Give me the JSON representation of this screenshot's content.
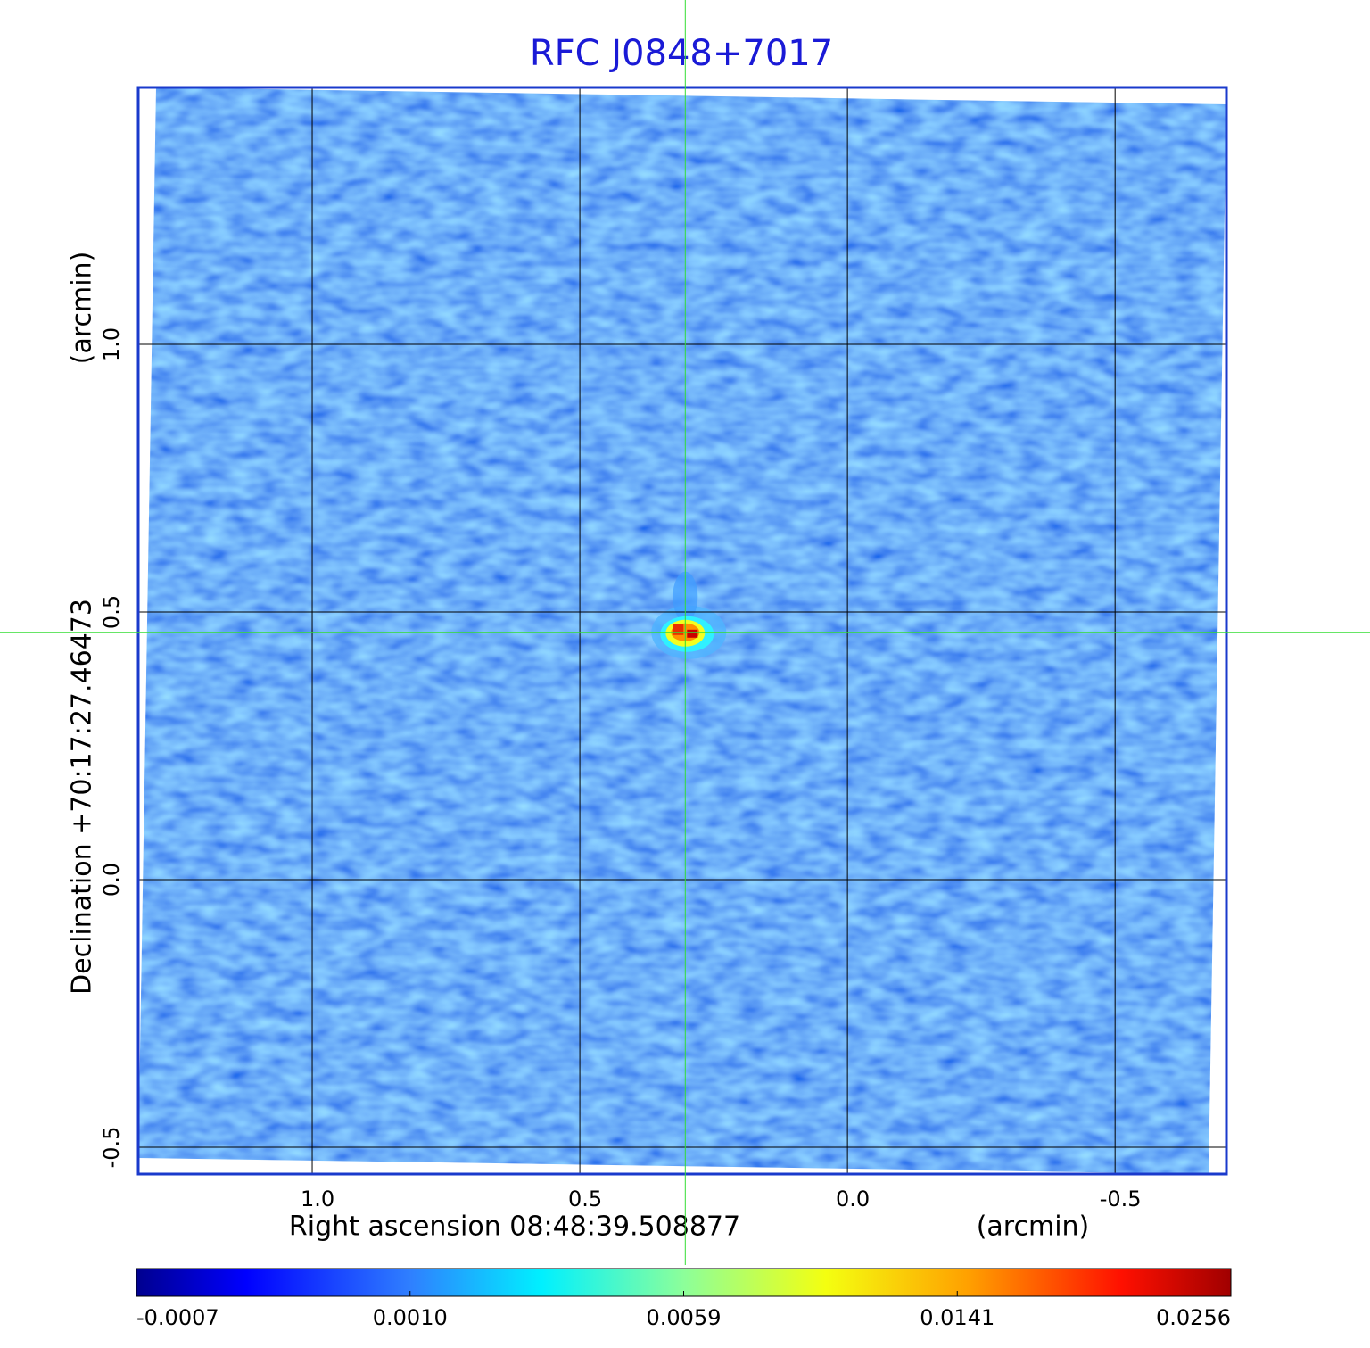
{
  "chart_data": {
    "type": "image",
    "title": "RFC J0848+7017",
    "xlabel": "Right ascension  08:48:39.508877",
    "xunit": "(arcmin)",
    "ylabel": "Declination  +70:17:27.46473",
    "yunit": "(arcmin)",
    "xlim": [
      1.325,
      -0.708
    ],
    "ylim": [
      -0.55,
      1.48
    ],
    "xticks": [
      {
        "value": 1,
        "label": "1.0"
      },
      0.5,
      {
        "value": 0,
        "label": "0.0"
      },
      -0.5
    ],
    "yticks": [
      -0.5,
      {
        "value": 0,
        "label": "0.0"
      },
      0.5,
      {
        "value": 1,
        "label": "1.0"
      }
    ],
    "grid": true,
    "crosshair": {
      "x": 0.303,
      "y": 0.462
    },
    "colorbar_ticks": [
      -0.0007,
      {
        "value": 0.001,
        "label": "0.0010"
      },
      0.0059,
      0.0141,
      0.0256
    ]
  }
}
